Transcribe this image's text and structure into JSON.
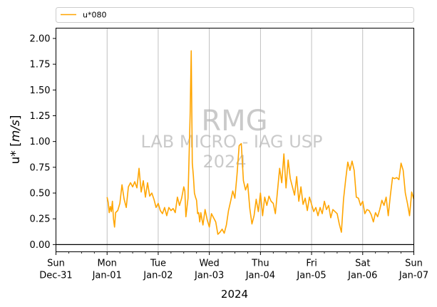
{
  "chart_data": {
    "type": "line",
    "title": "",
    "xlabel": "2024",
    "ylabel": "u* [m/s]",
    "ylabel_main": "u* [",
    "ylabel_unit": "m/s",
    "ylabel_close": "]",
    "xlim": [
      "2023-12-31 00:00",
      "2024-01-07 00:00"
    ],
    "ylim": [
      -0.07,
      2.1
    ],
    "yticks": [
      {
        "value": 0.0,
        "label": "0.00"
      },
      {
        "value": 0.25,
        "label": "0.25"
      },
      {
        "value": 0.5,
        "label": "0.50"
      },
      {
        "value": 0.75,
        "label": "0.75"
      },
      {
        "value": 1.0,
        "label": "1.00"
      },
      {
        "value": 1.25,
        "label": "1.25"
      },
      {
        "value": 1.5,
        "label": "1.50"
      },
      {
        "value": 1.75,
        "label": "1.75"
      },
      {
        "value": 2.0,
        "label": "2.00"
      }
    ],
    "xticks": [
      {
        "date": "2023-12-31",
        "line1": "Sun",
        "line2": "Dec-31"
      },
      {
        "date": "2024-01-01",
        "line1": "Mon",
        "line2": "Jan-01"
      },
      {
        "date": "2024-01-02",
        "line1": "Tue",
        "line2": "Jan-02"
      },
      {
        "date": "2024-01-03",
        "line1": "Wed",
        "line2": "Jan-03"
      },
      {
        "date": "2024-01-04",
        "line1": "Thu",
        "line2": "Jan-04"
      },
      {
        "date": "2024-01-05",
        "line1": "Fri",
        "line2": "Jan-05"
      },
      {
        "date": "2024-01-06",
        "line1": "Sat",
        "line2": "Jan-06"
      },
      {
        "date": "2024-01-07",
        "line1": "Sun",
        "line2": "Jan-07"
      }
    ],
    "grid": "vertical",
    "legend_position": "top",
    "reference_line": 0.0,
    "watermark": [
      "RMG",
      "LAB MICRO - IAG USP",
      "2024"
    ],
    "colors": {
      "series": "#ffa500",
      "grid": "#b0b0b0",
      "axes": "#000000"
    },
    "series": [
      {
        "name": "u*080",
        "x": [
          "2024-01-01 00:00",
          "2024-01-01 00:30",
          "2024-01-01 01:00",
          "2024-01-01 01:30",
          "2024-01-01 02:00",
          "2024-01-01 02:30",
          "2024-01-01 03:00",
          "2024-01-01 03:30",
          "2024-01-01 04:00",
          "2024-01-01 05:00",
          "2024-01-01 06:00",
          "2024-01-01 07:00",
          "2024-01-01 08:00",
          "2024-01-01 09:00",
          "2024-01-01 10:00",
          "2024-01-01 11:00",
          "2024-01-01 12:00",
          "2024-01-01 13:00",
          "2024-01-01 14:00",
          "2024-01-01 15:00",
          "2024-01-01 16:00",
          "2024-01-01 17:00",
          "2024-01-01 18:00",
          "2024-01-01 19:00",
          "2024-01-01 20:00",
          "2024-01-01 21:00",
          "2024-01-01 22:00",
          "2024-01-01 23:00",
          "2024-01-02 00:00",
          "2024-01-02 01:00",
          "2024-01-02 02:00",
          "2024-01-02 03:00",
          "2024-01-02 04:00",
          "2024-01-02 05:00",
          "2024-01-02 06:00",
          "2024-01-02 07:00",
          "2024-01-02 08:00",
          "2024-01-02 09:00",
          "2024-01-02 10:00",
          "2024-01-02 11:00",
          "2024-01-02 12:00",
          "2024-01-02 12:30",
          "2024-01-02 13:00",
          "2024-01-02 14:00",
          "2024-01-02 15:00",
          "2024-01-02 15:30",
          "2024-01-02 16:00",
          "2024-01-02 16:30",
          "2024-01-02 17:00",
          "2024-01-02 17:30",
          "2024-01-02 18:00",
          "2024-01-02 18:30",
          "2024-01-02 19:00",
          "2024-01-02 19:30",
          "2024-01-02 20:00",
          "2024-01-02 21:00",
          "2024-01-02 22:00",
          "2024-01-02 23:00",
          "2024-01-03 00:00",
          "2024-01-03 01:00",
          "2024-01-03 02:00",
          "2024-01-03 03:00",
          "2024-01-03 04:00",
          "2024-01-03 05:00",
          "2024-01-03 06:00",
          "2024-01-03 07:00",
          "2024-01-03 08:00",
          "2024-01-03 09:00",
          "2024-01-03 10:00",
          "2024-01-03 11:00",
          "2024-01-03 12:00",
          "2024-01-03 13:00",
          "2024-01-03 14:00",
          "2024-01-03 15:00",
          "2024-01-03 16:00",
          "2024-01-03 17:00",
          "2024-01-03 18:00",
          "2024-01-03 19:00",
          "2024-01-03 20:00",
          "2024-01-03 21:00",
          "2024-01-03 22:00",
          "2024-01-03 23:00",
          "2024-01-04 00:00",
          "2024-01-04 01:00",
          "2024-01-04 02:00",
          "2024-01-04 03:00",
          "2024-01-04 04:00",
          "2024-01-04 05:00",
          "2024-01-04 06:00",
          "2024-01-04 07:00",
          "2024-01-04 08:00",
          "2024-01-04 09:00",
          "2024-01-04 10:00",
          "2024-01-04 11:00",
          "2024-01-04 12:00",
          "2024-01-04 13:00",
          "2024-01-04 14:00",
          "2024-01-04 15:00",
          "2024-01-04 16:00",
          "2024-01-04 17:00",
          "2024-01-04 18:00",
          "2024-01-04 19:00",
          "2024-01-04 20:00",
          "2024-01-04 21:00",
          "2024-01-04 22:00",
          "2024-01-04 23:00",
          "2024-01-05 00:00",
          "2024-01-05 01:00",
          "2024-01-05 02:00",
          "2024-01-05 03:00",
          "2024-01-05 04:00",
          "2024-01-05 05:00",
          "2024-01-05 06:00",
          "2024-01-05 07:00",
          "2024-01-05 08:00",
          "2024-01-05 09:00",
          "2024-01-05 10:00",
          "2024-01-05 11:00",
          "2024-01-05 12:00",
          "2024-01-05 13:00",
          "2024-01-05 14:00",
          "2024-01-05 15:00",
          "2024-01-05 16:00",
          "2024-01-05 17:00",
          "2024-01-05 18:00",
          "2024-01-05 19:00",
          "2024-01-05 20:00",
          "2024-01-05 21:00",
          "2024-01-05 22:00",
          "2024-01-05 23:00",
          "2024-01-06 00:00",
          "2024-01-06 01:00",
          "2024-01-06 02:00",
          "2024-01-06 03:00",
          "2024-01-06 04:00",
          "2024-01-06 05:00",
          "2024-01-06 06:00",
          "2024-01-06 07:00",
          "2024-01-06 08:00",
          "2024-01-06 09:00",
          "2024-01-06 10:00",
          "2024-01-06 11:00",
          "2024-01-06 12:00",
          "2024-01-06 13:00",
          "2024-01-06 14:00",
          "2024-01-06 15:00",
          "2024-01-06 16:00",
          "2024-01-06 17:00",
          "2024-01-06 18:00",
          "2024-01-06 19:00",
          "2024-01-06 20:00",
          "2024-01-06 21:00",
          "2024-01-06 22:00",
          "2024-01-06 23:00",
          "2024-01-07 00:00"
        ],
        "y": [
          0.46,
          0.41,
          0.31,
          0.37,
          0.32,
          0.42,
          0.25,
          0.17,
          0.31,
          0.33,
          0.4,
          0.58,
          0.44,
          0.36,
          0.56,
          0.6,
          0.56,
          0.61,
          0.55,
          0.74,
          0.51,
          0.62,
          0.46,
          0.6,
          0.47,
          0.5,
          0.44,
          0.36,
          0.4,
          0.33,
          0.3,
          0.36,
          0.28,
          0.36,
          0.33,
          0.35,
          0.31,
          0.46,
          0.38,
          0.45,
          0.56,
          0.52,
          0.27,
          0.45,
          1.27,
          1.88,
          0.79,
          0.67,
          0.5,
          0.46,
          0.43,
          0.3,
          0.31,
          0.22,
          0.31,
          0.19,
          0.34,
          0.24,
          0.17,
          0.3,
          0.26,
          0.22,
          0.1,
          0.12,
          0.15,
          0.11,
          0.19,
          0.33,
          0.42,
          0.52,
          0.45,
          0.68,
          0.96,
          0.98,
          0.62,
          0.53,
          0.59,
          0.35,
          0.2,
          0.28,
          0.44,
          0.32,
          0.5,
          0.28,
          0.46,
          0.38,
          0.47,
          0.42,
          0.4,
          0.3,
          0.52,
          0.74,
          0.6,
          0.88,
          0.55,
          0.82,
          0.64,
          0.56,
          0.48,
          0.66,
          0.42,
          0.56,
          0.39,
          0.45,
          0.33,
          0.46,
          0.39,
          0.32,
          0.36,
          0.28,
          0.36,
          0.3,
          0.42,
          0.34,
          0.38,
          0.26,
          0.34,
          0.32,
          0.3,
          0.2,
          0.12,
          0.44,
          0.63,
          0.8,
          0.72,
          0.81,
          0.72,
          0.46,
          0.45,
          0.38,
          0.42,
          0.3,
          0.34,
          0.33,
          0.29,
          0.22,
          0.31,
          0.27,
          0.34,
          0.43,
          0.38,
          0.46,
          0.28,
          0.48,
          0.65,
          0.64,
          0.65,
          0.63,
          0.79,
          0.72,
          0.5,
          0.4,
          0.28,
          0.51,
          0.44
        ]
      }
    ]
  }
}
